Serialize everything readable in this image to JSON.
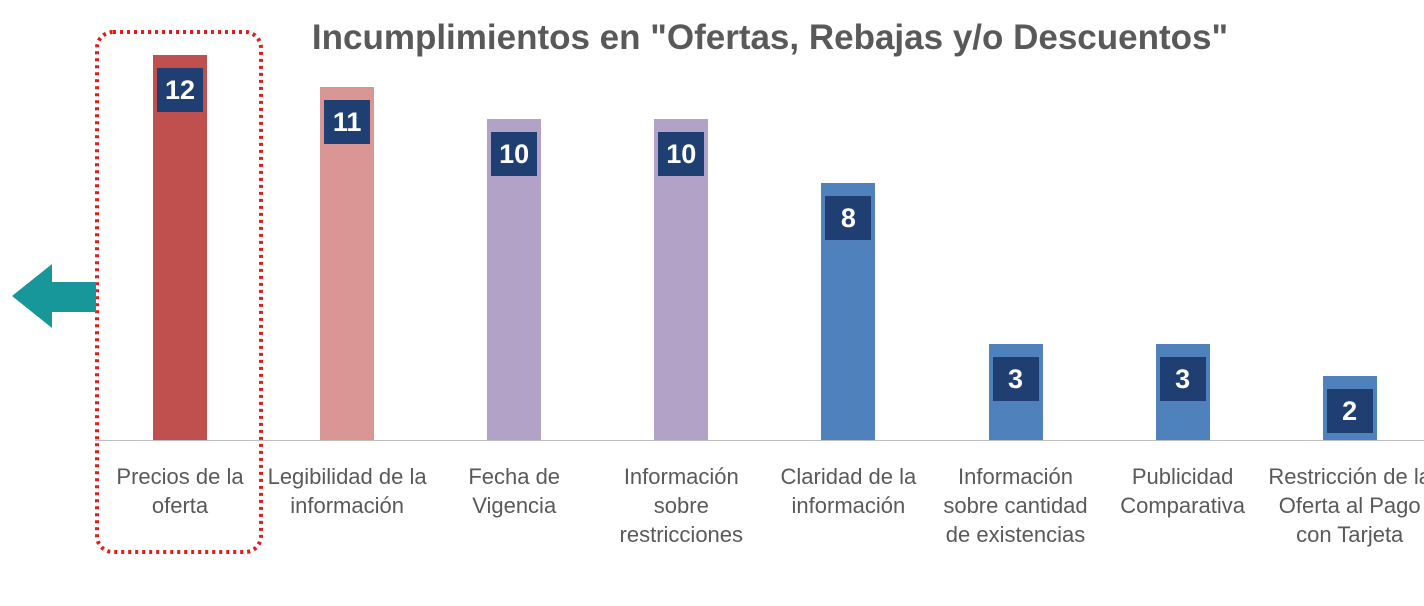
{
  "chart_data": {
    "type": "bar",
    "title": "Incumplimientos en \"Ofertas, Rebajas y/o Descuentos\"",
    "categories": [
      "Precios de la oferta",
      "Legibilidad de la información",
      "Fecha de Vigencia",
      "Información sobre restricciones",
      "Claridad de la información",
      "Información sobre cantidad de existencias",
      "Publicidad Comparativa",
      "Restricción de la Oferta al Pago con Tarjeta"
    ],
    "values": [
      12,
      11,
      10,
      10,
      8,
      3,
      3,
      2
    ],
    "colors": [
      "#c0504d",
      "#d99694",
      "#b3a2c7",
      "#b3a2c7",
      "#4f81bd",
      "#4f81bd",
      "#4f81bd",
      "#4f81bd"
    ],
    "label_color": "#1f3f73"
  }
}
